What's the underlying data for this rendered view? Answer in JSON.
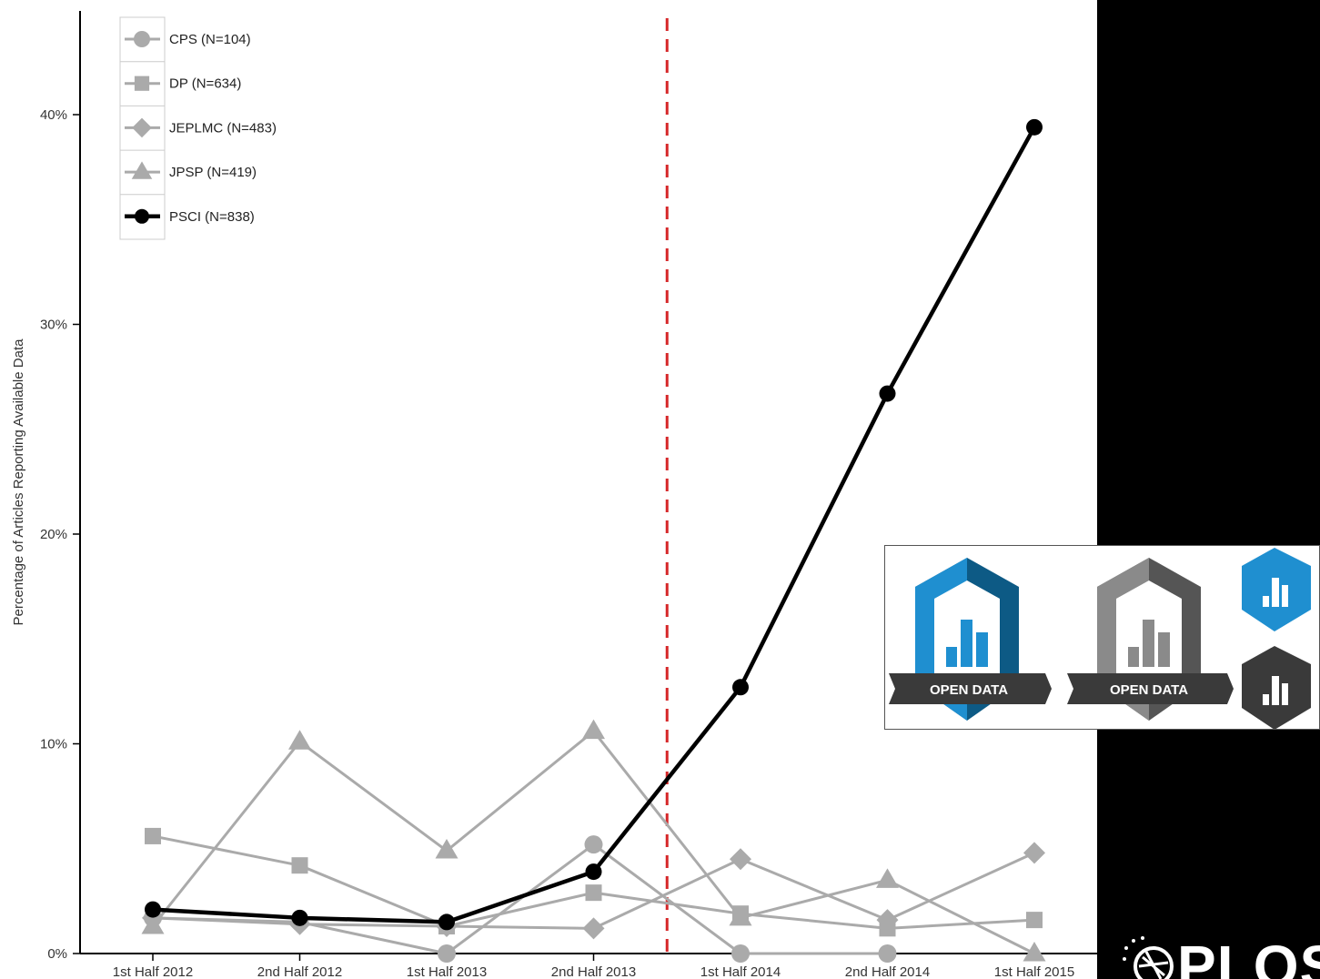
{
  "chart_data": {
    "type": "line",
    "title": "",
    "xlabel": "",
    "ylabel": "Percentage of Articles Reporting Available Data",
    "categories": [
      "1st Half 2012",
      "2nd Half 2012",
      "1st Half 2013",
      "2nd Half 2013",
      "1st Half 2014",
      "2nd Half 2014",
      "1st Half 2015"
    ],
    "ylim": [
      0,
      44
    ],
    "yticks": [
      0,
      10,
      20,
      30,
      40
    ],
    "ytick_labels": [
      "0%",
      "10%",
      "20%",
      "30%",
      "40%"
    ],
    "grid": false,
    "legend_position": "top-left",
    "reference_line": {
      "between": [
        "2nd Half 2013",
        "1st Half 2014"
      ],
      "style": "dashed",
      "color": "#d62728"
    },
    "series": [
      {
        "name": "CPS (N=104)",
        "marker": "circle",
        "color": "#aaaaaa",
        "values": [
          1.7,
          1.5,
          0.0,
          5.2,
          0.0,
          0.0,
          null
        ]
      },
      {
        "name": "DP (N=634)",
        "marker": "square",
        "color": "#aaaaaa",
        "values": [
          5.6,
          4.2,
          1.3,
          2.9,
          1.9,
          1.2,
          1.6
        ]
      },
      {
        "name": "JEPLMC (N=483)",
        "marker": "diamond",
        "color": "#aaaaaa",
        "values": [
          1.7,
          1.4,
          1.3,
          1.2,
          4.5,
          1.6,
          4.8
        ]
      },
      {
        "name": "JPSP (N=419)",
        "marker": "triangle",
        "color": "#aaaaaa",
        "values": [
          1.3,
          10.1,
          4.9,
          10.6,
          1.7,
          3.5,
          0.0
        ]
      },
      {
        "name": "PSCI (N=838)",
        "marker": "circle",
        "color": "#000000",
        "values": [
          2.1,
          1.7,
          1.5,
          3.9,
          12.7,
          26.7,
          39.4
        ]
      }
    ]
  },
  "badges": {
    "large_label_1": "OPEN DATA",
    "large_label_2": "OPEN DATA",
    "colors": {
      "blue": "#1f8fd0",
      "blue_dark": "#0d5a85",
      "gray": "#8a8a8a",
      "gray_dark": "#555555",
      "ribbon": "#3a3a3a"
    }
  },
  "logo": {
    "text": "PLOS",
    "icon": "globe-icon"
  }
}
